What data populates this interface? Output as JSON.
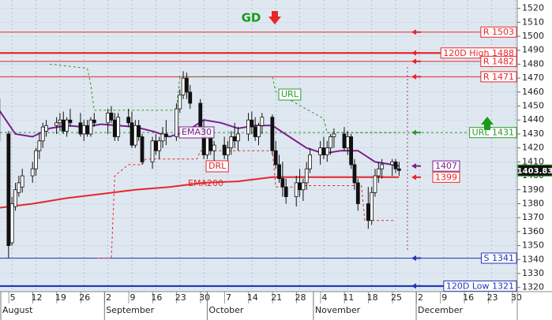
{
  "chart_data": {
    "type": "candlestick",
    "signal": "GD",
    "xlim": [
      0.5,
      151.5
    ],
    "ylim": [
      1317,
      1526
    ],
    "yticks": [
      1320,
      1330,
      1340,
      1350,
      1360,
      1370,
      1380,
      1390,
      1400,
      1410,
      1420,
      1430,
      1440,
      1450,
      1460,
      1470,
      1480,
      1490,
      1500,
      1510,
      1520
    ],
    "xticks": [
      {
        "value": 4,
        "label": "5"
      },
      {
        "value": 11,
        "label": "12"
      },
      {
        "value": 18,
        "label": "19"
      },
      {
        "value": 25,
        "label": "26"
      },
      {
        "value": 32,
        "label": "2"
      },
      {
        "value": 39,
        "label": "9"
      },
      {
        "value": 46,
        "label": "16"
      },
      {
        "value": 53,
        "label": "23"
      },
      {
        "value": 60,
        "label": "30"
      },
      {
        "value": 67,
        "label": "7"
      },
      {
        "value": 74,
        "label": "14"
      },
      {
        "value": 81,
        "label": "21"
      },
      {
        "value": 88,
        "label": "28"
      },
      {
        "value": 95,
        "label": "4"
      },
      {
        "value": 102,
        "label": "11"
      },
      {
        "value": 109,
        "label": "18"
      },
      {
        "value": 116,
        "label": "25"
      },
      {
        "value": 123,
        "label": "2"
      },
      {
        "value": 130,
        "label": "9"
      },
      {
        "value": 137,
        "label": "16"
      },
      {
        "value": 144,
        "label": "23"
      },
      {
        "value": 151,
        "label": "30"
      }
    ],
    "months": [
      {
        "value": 0,
        "label": "August"
      },
      {
        "value": 31,
        "label": "September"
      },
      {
        "value": 61,
        "label": "October"
      },
      {
        "value": 92,
        "label": "November"
      },
      {
        "value": 122,
        "label": "December"
      }
    ],
    "grid": true,
    "ohlc": {
      "x": [
        0,
        3,
        4,
        5,
        6,
        7,
        10,
        11,
        12,
        13,
        14,
        17,
        18,
        19,
        20,
        21,
        24,
        25,
        26,
        27,
        28,
        32,
        33,
        34,
        35,
        38,
        39,
        40,
        41,
        42,
        45,
        46,
        47,
        48,
        49,
        52,
        53,
        54,
        55,
        56,
        59,
        60,
        61,
        62,
        63,
        66,
        67,
        68,
        69,
        70,
        73,
        74,
        75,
        76,
        77,
        80,
        81,
        82,
        83,
        84,
        87,
        88,
        89,
        90,
        91,
        94,
        95,
        96,
        97,
        98,
        101,
        102,
        103,
        104,
        105,
        108,
        109,
        110,
        111,
        112,
        115,
        116,
        117
      ],
      "open": [
        1455,
        1430,
        1352,
        1378,
        1388,
        1392,
        1400,
        1405,
        1418,
        1425,
        1432,
        1436,
        1438,
        1440,
        1432,
        1440,
        1438,
        1430,
        1436,
        1430,
        1440,
        1438,
        1445,
        1440,
        1428,
        1442,
        1438,
        1422,
        1436,
        1428,
        1410,
        1425,
        1418,
        1425,
        1430,
        1428,
        1448,
        1458,
        1470,
        1460,
        1452,
        1435,
        1415,
        1428,
        1418,
        1422,
        1415,
        1420,
        1428,
        1425,
        1430,
        1440,
        1435,
        1428,
        1436,
        1442,
        1418,
        1408,
        1398,
        1392,
        1385,
        1395,
        1390,
        1395,
        1405,
        1415,
        1420,
        1415,
        1420,
        1428,
        1430,
        1420,
        1428,
        1408,
        1395,
        1380,
        1368,
        1388,
        1400,
        1405,
        1408,
        1410,
        1405
      ],
      "high": [
        1458,
        1432,
        1385,
        1395,
        1400,
        1405,
        1410,
        1420,
        1430,
        1438,
        1440,
        1442,
        1445,
        1446,
        1442,
        1448,
        1445,
        1440,
        1440,
        1442,
        1445,
        1448,
        1450,
        1445,
        1445,
        1448,
        1446,
        1440,
        1440,
        1430,
        1428,
        1430,
        1428,
        1435,
        1440,
        1452,
        1462,
        1475,
        1474,
        1465,
        1455,
        1440,
        1430,
        1432,
        1425,
        1428,
        1425,
        1432,
        1438,
        1435,
        1445,
        1446,
        1442,
        1438,
        1445,
        1444,
        1425,
        1415,
        1410,
        1398,
        1400,
        1405,
        1398,
        1410,
        1420,
        1425,
        1428,
        1425,
        1430,
        1434,
        1435,
        1432,
        1430,
        1412,
        1398,
        1392,
        1392,
        1405,
        1410,
        1412,
        1412,
        1412,
        1410
      ],
      "low": [
        1420,
        1341,
        1350,
        1375,
        1385,
        1388,
        1395,
        1400,
        1412,
        1420,
        1428,
        1430,
        1432,
        1430,
        1428,
        1435,
        1428,
        1425,
        1428,
        1428,
        1435,
        1430,
        1438,
        1425,
        1425,
        1435,
        1420,
        1420,
        1425,
        1408,
        1405,
        1415,
        1412,
        1420,
        1422,
        1425,
        1445,
        1455,
        1455,
        1448,
        1430,
        1412,
        1412,
        1415,
        1410,
        1412,
        1410,
        1415,
        1420,
        1418,
        1425,
        1430,
        1425,
        1422,
        1430,
        1415,
        1405,
        1395,
        1385,
        1380,
        1378,
        1385,
        1382,
        1390,
        1402,
        1408,
        1412,
        1410,
        1415,
        1420,
        1418,
        1415,
        1405,
        1390,
        1375,
        1362,
        1365,
        1385,
        1395,
        1398,
        1400,
        1402,
        1400
      ],
      "close": [
        1425,
        1350,
        1380,
        1390,
        1395,
        1400,
        1405,
        1418,
        1425,
        1435,
        1436,
        1438,
        1440,
        1432,
        1440,
        1438,
        1430,
        1436,
        1430,
        1440,
        1438,
        1445,
        1440,
        1428,
        1442,
        1438,
        1422,
        1436,
        1428,
        1410,
        1425,
        1418,
        1425,
        1430,
        1428,
        1448,
        1458,
        1470,
        1460,
        1452,
        1435,
        1415,
        1428,
        1418,
        1422,
        1415,
        1420,
        1428,
        1425,
        1430,
        1440,
        1435,
        1428,
        1436,
        1442,
        1418,
        1408,
        1398,
        1392,
        1385,
        1395,
        1390,
        1395,
        1405,
        1415,
        1420,
        1415,
        1420,
        1428,
        1430,
        1420,
        1428,
        1408,
        1395,
        1380,
        1368,
        1388,
        1400,
        1405,
        1408,
        1410,
        1405,
        1403.83
      ]
    },
    "lines": [
      {
        "name": "EMA30",
        "color": "#7b1f8c",
        "dash": false,
        "weight": "bold",
        "x": [
          0,
          5,
          10,
          15,
          20,
          25,
          30,
          35,
          40,
          45,
          50,
          55,
          60,
          65,
          70,
          75,
          80,
          85,
          90,
          95,
          100,
          105,
          110,
          115,
          117
        ],
        "values": [
          1448,
          1430,
          1428,
          1434,
          1436,
          1435,
          1437,
          1436,
          1435,
          1432,
          1428,
          1432,
          1440,
          1438,
          1434,
          1436,
          1436,
          1428,
          1420,
          1416,
          1418,
          1418,
          1410,
          1408,
          1407
        ]
      },
      {
        "name": "EMA200",
        "color": "#e8262a",
        "dash": false,
        "weight": "bold",
        "x": [
          0,
          10,
          20,
          30,
          40,
          50,
          60,
          70,
          80,
          90,
          100,
          110,
          117
        ],
        "values": [
          1377,
          1380,
          1384,
          1387,
          1390,
          1392,
          1395,
          1396,
          1399,
          1399,
          1399,
          1399,
          1399
        ]
      },
      {
        "name": "URL",
        "color": "#2e9a2e",
        "dash": true,
        "weight": "normal",
        "x": [
          15,
          26,
          27,
          28,
          52,
          53,
          80,
          81,
          95,
          96,
          117
        ],
        "values": [
          1480,
          1477,
          1465,
          1447,
          1447,
          1471,
          1471,
          1460,
          1441,
          1431,
          1431
        ]
      },
      {
        "name": "DRL",
        "color": "#e8262a",
        "dash": true,
        "weight": "normal",
        "x": [
          29,
          33,
          34,
          38,
          42,
          43,
          58,
          59,
          80,
          81,
          87,
          88,
          106,
          107,
          116
        ],
        "values": [
          1341,
          1341,
          1400,
          1408,
          1408,
          1412,
          1412,
          1418,
          1418,
          1392,
          1392,
          1393,
          1393,
          1368,
          1368
        ]
      }
    ],
    "levels": [
      {
        "label": "R 1503",
        "value": 1503,
        "color": "#e8262a",
        "dash": false,
        "weight": "normal"
      },
      {
        "label": "120D High 1488",
        "value": 1488,
        "color": "#e8262a",
        "dash": false,
        "weight": "bold"
      },
      {
        "label": "R 1482",
        "value": 1482,
        "color": "#e8262a",
        "dash": false,
        "weight": "normal"
      },
      {
        "label": "R 1471",
        "value": 1471,
        "color": "#e8262a",
        "dash": false,
        "weight": "normal"
      },
      {
        "label": "URL 1431",
        "value": 1431,
        "color": "#2e9a2e",
        "dash": true,
        "weight": "normal"
      },
      {
        "label": "S 1341",
        "value": 1341,
        "color": "#2336b8",
        "dash": false,
        "weight": "normal"
      },
      {
        "label": "120D Low 1321",
        "value": 1321,
        "color": "#2336b8",
        "dash": false,
        "weight": "bold"
      }
    ],
    "markers": [
      {
        "value": 1407,
        "color": "#7b1f8c"
      },
      {
        "value": 1399,
        "color": "#e8262a"
      }
    ],
    "last_price": 1403.83
  }
}
